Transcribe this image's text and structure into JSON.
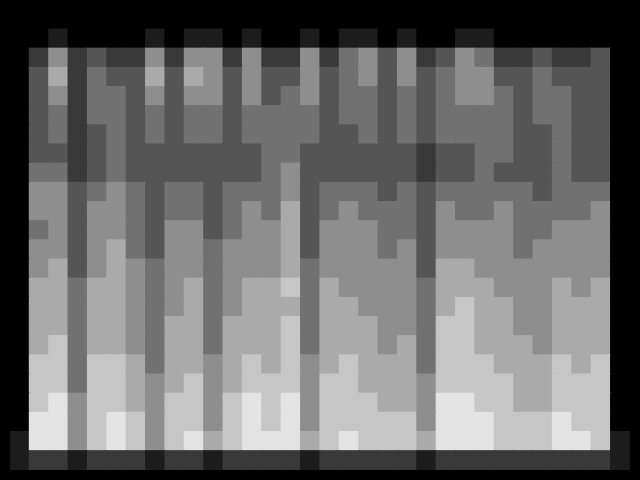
{
  "chart_data": {
    "type": "heatmap",
    "zlim": [
      0,
      9
    ],
    "grid": false,
    "tick_labels": false,
    "cells": [
      [
        0,
        0,
        0,
        0,
        0,
        0,
        0,
        0,
        0,
        0,
        0,
        0,
        0,
        0,
        0,
        0,
        0,
        0,
        0,
        0,
        0,
        0,
        0,
        0,
        0,
        0,
        0,
        0,
        0,
        0,
        0,
        0
      ],
      [
        0,
        0,
        1,
        0,
        0,
        0,
        0,
        1,
        0,
        1,
        1,
        0,
        1,
        0,
        0,
        1,
        0,
        1,
        1,
        0,
        1,
        0,
        0,
        1,
        1,
        0,
        0,
        0,
        0,
        0,
        0,
        0
      ],
      [
        0,
        2,
        5,
        2,
        3,
        2,
        2,
        5,
        2,
        5,
        5,
        2,
        5,
        2,
        2,
        5,
        2,
        4,
        5,
        3,
        5,
        2,
        3,
        5,
        4,
        2,
        2,
        3,
        2,
        2,
        3,
        0
      ],
      [
        0,
        3,
        6,
        2,
        4,
        3,
        3,
        6,
        3,
        6,
        5,
        3,
        5,
        3,
        3,
        5,
        3,
        4,
        5,
        3,
        5,
        3,
        4,
        5,
        5,
        3,
        3,
        4,
        3,
        3,
        3,
        0
      ],
      [
        0,
        3,
        5,
        2,
        4,
        4,
        3,
        5,
        3,
        5,
        5,
        3,
        5,
        3,
        4,
        5,
        3,
        4,
        4,
        3,
        4,
        3,
        4,
        5,
        5,
        4,
        3,
        4,
        4,
        3,
        3,
        0
      ],
      [
        0,
        3,
        4,
        2,
        4,
        4,
        3,
        4,
        3,
        4,
        4,
        3,
        4,
        4,
        4,
        4,
        3,
        4,
        4,
        3,
        4,
        3,
        4,
        4,
        4,
        4,
        3,
        4,
        4,
        3,
        3,
        0
      ],
      [
        0,
        3,
        4,
        2,
        3,
        4,
        3,
        4,
        3,
        4,
        4,
        3,
        4,
        4,
        4,
        4,
        3,
        3,
        4,
        3,
        4,
        3,
        4,
        4,
        4,
        4,
        3,
        3,
        4,
        3,
        3,
        0
      ],
      [
        0,
        3,
        3,
        2,
        3,
        4,
        3,
        3,
        3,
        3,
        3,
        3,
        3,
        4,
        4,
        3,
        3,
        3,
        3,
        3,
        3,
        2,
        3,
        3,
        4,
        4,
        3,
        3,
        4,
        3,
        3,
        0
      ],
      [
        0,
        4,
        4,
        2,
        3,
        4,
        3,
        3,
        3,
        3,
        3,
        3,
        3,
        4,
        5,
        3,
        3,
        3,
        3,
        3,
        3,
        2,
        3,
        3,
        4,
        3,
        3,
        3,
        4,
        3,
        3,
        0
      ],
      [
        0,
        5,
        5,
        3,
        4,
        5,
        4,
        3,
        4,
        4,
        3,
        4,
        4,
        4,
        5,
        3,
        4,
        4,
        4,
        3,
        4,
        3,
        4,
        4,
        4,
        4,
        4,
        3,
        4,
        4,
        4,
        0
      ],
      [
        0,
        5,
        5,
        3,
        5,
        5,
        4,
        3,
        4,
        4,
        3,
        4,
        5,
        4,
        6,
        3,
        4,
        5,
        4,
        4,
        4,
        3,
        5,
        4,
        4,
        5,
        4,
        4,
        4,
        4,
        5,
        0
      ],
      [
        0,
        4,
        5,
        3,
        5,
        5,
        4,
        3,
        5,
        5,
        3,
        4,
        5,
        5,
        6,
        3,
        5,
        5,
        5,
        4,
        4,
        3,
        5,
        5,
        5,
        5,
        4,
        4,
        5,
        5,
        5,
        0
      ],
      [
        0,
        5,
        5,
        3,
        5,
        6,
        4,
        3,
        5,
        5,
        4,
        5,
        5,
        5,
        6,
        3,
        5,
        5,
        5,
        4,
        5,
        3,
        5,
        5,
        5,
        5,
        4,
        5,
        5,
        5,
        5,
        0
      ],
      [
        0,
        5,
        6,
        3,
        5,
        6,
        5,
        4,
        5,
        5,
        4,
        5,
        5,
        5,
        6,
        4,
        5,
        5,
        5,
        5,
        5,
        3,
        6,
        6,
        5,
        5,
        5,
        5,
        5,
        5,
        5,
        0
      ],
      [
        0,
        6,
        6,
        4,
        6,
        6,
        5,
        4,
        5,
        6,
        4,
        5,
        6,
        6,
        7,
        4,
        6,
        5,
        5,
        5,
        5,
        4,
        6,
        6,
        6,
        5,
        5,
        5,
        6,
        5,
        6,
        0
      ],
      [
        0,
        6,
        6,
        4,
        6,
        6,
        5,
        4,
        5,
        6,
        4,
        5,
        6,
        6,
        6,
        4,
        6,
        6,
        5,
        5,
        5,
        4,
        6,
        7,
        6,
        6,
        5,
        5,
        6,
        6,
        6,
        0
      ],
      [
        0,
        6,
        6,
        4,
        6,
        6,
        5,
        4,
        6,
        6,
        4,
        6,
        6,
        6,
        7,
        4,
        6,
        6,
        6,
        5,
        5,
        4,
        7,
        7,
        6,
        6,
        5,
        5,
        6,
        6,
        6,
        0
      ],
      [
        0,
        6,
        7,
        4,
        6,
        6,
        5,
        4,
        6,
        6,
        4,
        6,
        6,
        6,
        7,
        4,
        6,
        6,
        6,
        5,
        6,
        4,
        7,
        7,
        6,
        6,
        6,
        5,
        6,
        6,
        6,
        0
      ],
      [
        0,
        7,
        7,
        4,
        7,
        7,
        6,
        4,
        6,
        6,
        5,
        6,
        7,
        6,
        7,
        5,
        6,
        7,
        6,
        6,
        6,
        4,
        7,
        7,
        7,
        6,
        6,
        6,
        7,
        6,
        7,
        0
      ],
      [
        0,
        7,
        7,
        4,
        7,
        7,
        6,
        5,
        6,
        7,
        5,
        6,
        7,
        7,
        7,
        5,
        7,
        7,
        6,
        6,
        6,
        5,
        7,
        7,
        7,
        7,
        6,
        6,
        7,
        7,
        7,
        0
      ],
      [
        0,
        7,
        8,
        5,
        7,
        7,
        6,
        5,
        7,
        7,
        5,
        7,
        8,
        7,
        8,
        5,
        7,
        7,
        7,
        6,
        6,
        5,
        8,
        8,
        7,
        7,
        6,
        6,
        7,
        7,
        7,
        0
      ],
      [
        0,
        8,
        8,
        5,
        7,
        8,
        7,
        5,
        7,
        7,
        5,
        7,
        8,
        7,
        8,
        5,
        7,
        7,
        7,
        7,
        7,
        5,
        8,
        8,
        8,
        7,
        7,
        7,
        8,
        7,
        7,
        0
      ],
      [
        1,
        8,
        8,
        5,
        7,
        8,
        7,
        5,
        7,
        8,
        6,
        7,
        8,
        8,
        8,
        6,
        7,
        8,
        7,
        7,
        7,
        6,
        8,
        8,
        8,
        7,
        7,
        7,
        8,
        8,
        7,
        1
      ],
      [
        1,
        2,
        2,
        1,
        2,
        2,
        2,
        1,
        2,
        2,
        1,
        2,
        2,
        2,
        2,
        1,
        2,
        2,
        2,
        2,
        2,
        1,
        2,
        2,
        2,
        2,
        2,
        2,
        2,
        2,
        2,
        1
      ]
    ]
  }
}
